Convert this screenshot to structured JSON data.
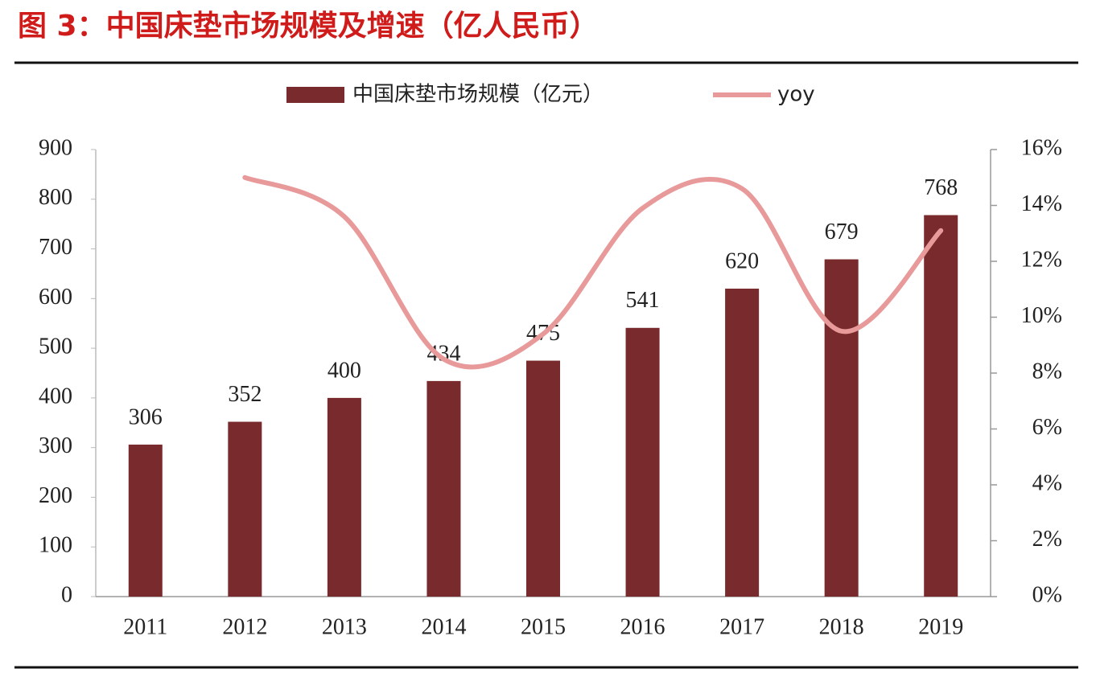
{
  "chart_data": {
    "type": "bar",
    "title": "图 3：中国床垫市场规模及增速（亿人民币）",
    "categories": [
      "2011",
      "2012",
      "2013",
      "2014",
      "2015",
      "2016",
      "2017",
      "2018",
      "2019"
    ],
    "series": [
      {
        "name": "中国床垫市场规模（亿元）",
        "type": "bar",
        "color": "#782a2c",
        "values": [
          306,
          352,
          400,
          434,
          475,
          541,
          620,
          679,
          768
        ]
      },
      {
        "name": "yoy",
        "type": "line",
        "axis": "y2",
        "color": "#e8999a",
        "values": [
          null,
          15.0,
          13.6,
          8.5,
          9.4,
          13.9,
          14.6,
          9.5,
          13.1
        ]
      }
    ],
    "ylim": [
      0,
      900
    ],
    "yticks": [
      0,
      100,
      200,
      300,
      400,
      500,
      600,
      700,
      800,
      900
    ],
    "y2lim": [
      0,
      16
    ],
    "y2ticks": [
      {
        "value": 0,
        "label": "0%"
      },
      {
        "value": 2,
        "label": "2%"
      },
      {
        "value": 4,
        "label": "4%"
      },
      {
        "value": 6,
        "label": "6%"
      },
      {
        "value": 8,
        "label": "8%"
      },
      {
        "value": 10,
        "label": "10%"
      },
      {
        "value": 12,
        "label": "12%"
      },
      {
        "value": 14,
        "label": "14%"
      },
      {
        "value": 16,
        "label": "16%"
      }
    ]
  }
}
